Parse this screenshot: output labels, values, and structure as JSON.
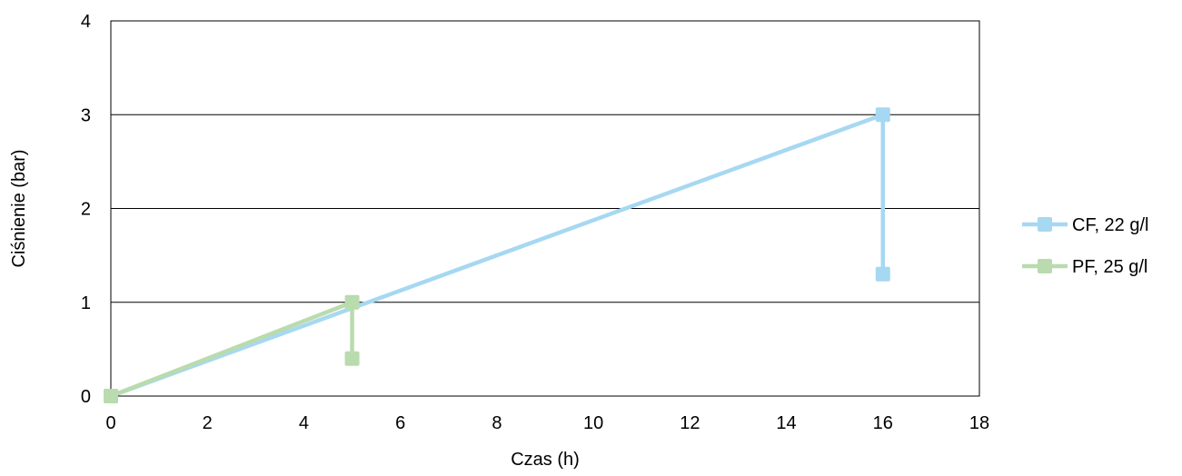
{
  "chart_data": {
    "type": "line",
    "xlabel": "Czas (h)",
    "ylabel": "Ciśnienie (bar)",
    "xlim": [
      0,
      18
    ],
    "ylim": [
      0,
      4
    ],
    "x_ticks": [
      0,
      2,
      4,
      6,
      8,
      10,
      12,
      14,
      16,
      18
    ],
    "y_ticks": [
      0,
      1,
      2,
      3,
      4
    ],
    "grid": "horizontal",
    "legend_position": "right",
    "series": [
      {
        "name": "CF, 22 g/l",
        "color": "#a6d8f2",
        "marker": "square",
        "points": [
          [
            0,
            0
          ],
          [
            16,
            3.0
          ],
          [
            16,
            1.3
          ]
        ]
      },
      {
        "name": "PF, 25 g/l",
        "color": "#b9dbad",
        "marker": "square",
        "points": [
          [
            0,
            0
          ],
          [
            5,
            1.0
          ],
          [
            5,
            0.4
          ]
        ]
      }
    ]
  }
}
